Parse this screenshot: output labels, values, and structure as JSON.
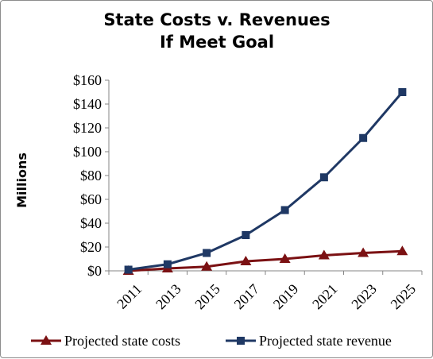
{
  "chart_data": {
    "type": "line",
    "title_lines": [
      "State Costs v. Revenues",
      "If Meet Goal"
    ],
    "ylabel": "Millions",
    "xlabel": "",
    "categories": [
      "2011",
      "2013",
      "2015",
      "2017",
      "2019",
      "2021",
      "2023",
      "2025"
    ],
    "ytick_labels": [
      "$0",
      "$20",
      "$40",
      "$60",
      "$80",
      "$100",
      "$120",
      "$140",
      "$160"
    ],
    "ylim": [
      0,
      160
    ],
    "ytick_step": 20,
    "grid": false,
    "legend_position": "bottom",
    "series": [
      {
        "name": "Projected state costs",
        "values": [
          0,
          2,
          3.5,
          8,
          10,
          13,
          15,
          16.5
        ],
        "color": "#7b1113",
        "marker": "triangle"
      },
      {
        "name": "Projected state revenue",
        "values": [
          1,
          5.5,
          15,
          30,
          51,
          78.5,
          111.5,
          150
        ],
        "color": "#1f3864",
        "marker": "square"
      }
    ]
  }
}
